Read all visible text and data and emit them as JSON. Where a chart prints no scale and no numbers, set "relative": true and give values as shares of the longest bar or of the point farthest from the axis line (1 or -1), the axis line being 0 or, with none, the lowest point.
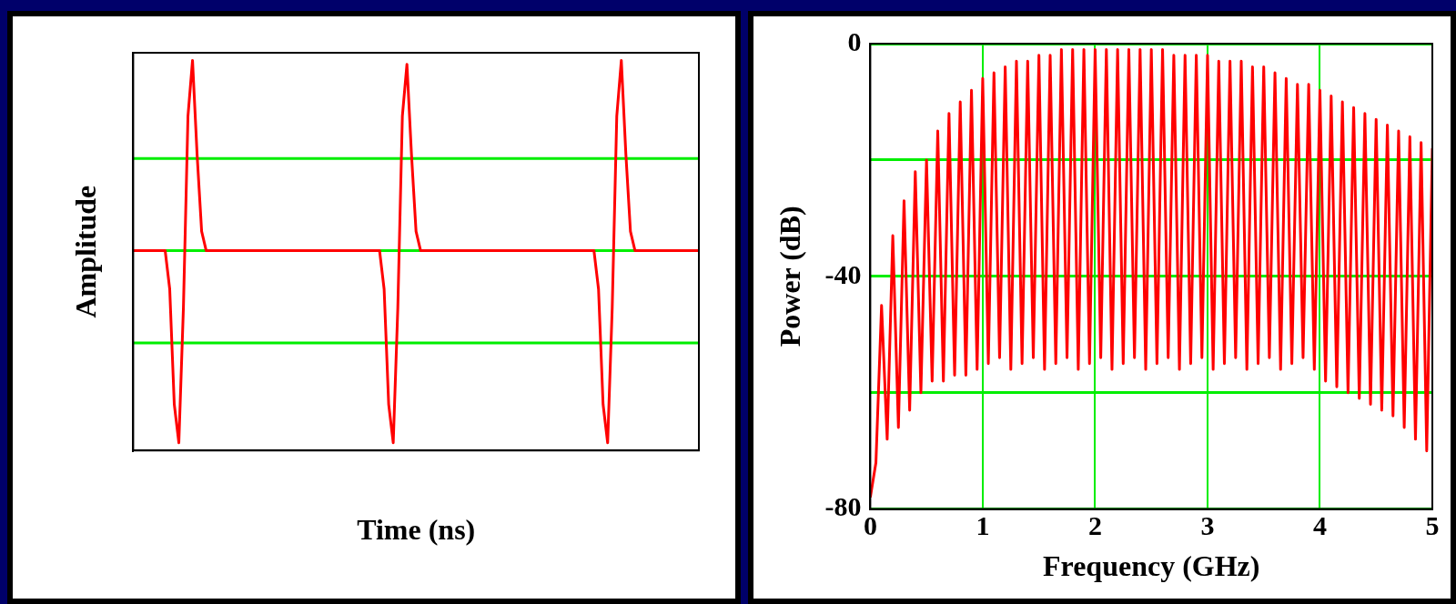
{
  "chart_data": [
    {
      "type": "line",
      "xlabel": "Time (ns)",
      "ylabel": "Amplitude",
      "relative": true,
      "marker": "none",
      "line_style": "solid",
      "ref_lines": [
        {
          "axis": "y",
          "value": 0.48,
          "color": "#00ee00"
        },
        {
          "axis": "y",
          "value": 0,
          "color": "#00ee00"
        },
        {
          "axis": "y",
          "value": -0.48,
          "color": "#00ee00"
        }
      ],
      "categories": [
        null,
        null,
        null,
        null,
        null,
        null,
        null,
        null,
        null,
        null,
        null,
        null,
        null,
        null,
        null,
        null,
        null,
        null,
        null,
        null,
        null,
        null,
        null,
        null,
        null,
        null,
        null,
        null,
        null,
        null,
        null,
        null,
        null,
        null,
        null,
        null,
        null,
        null,
        null,
        null,
        null,
        null,
        null,
        null,
        null,
        null,
        null,
        null,
        null,
        null,
        null,
        null,
        null,
        null,
        null,
        null,
        null,
        null,
        null,
        null,
        null,
        null,
        null,
        null,
        null,
        null,
        null,
        null,
        null,
        null,
        null,
        null,
        null,
        null,
        null,
        null,
        null,
        null,
        null,
        null,
        null,
        null,
        null,
        null,
        null,
        null,
        null,
        null,
        null,
        null,
        null,
        null,
        null,
        null,
        null,
        null,
        null,
        null,
        null,
        null,
        null,
        null,
        null,
        null,
        null,
        null,
        null,
        null,
        null,
        null,
        null,
        null,
        null,
        null,
        null,
        null,
        null,
        null,
        null,
        null,
        null,
        null,
        null,
        null,
        null
      ],
      "series": [
        {
          "color": "#ff0000",
          "values": [
            0,
            0,
            0,
            0,
            0,
            0,
            0,
            0,
            -0.2,
            -0.8,
            -1,
            -0.3,
            0.7,
            0.99,
            0.5,
            0.1,
            0,
            0,
            0,
            0,
            0,
            0,
            0,
            0,
            0,
            0,
            0,
            0,
            0,
            0,
            0,
            0,
            0,
            0,
            0,
            0,
            0,
            0,
            0,
            0,
            0,
            0,
            0,
            0,
            0,
            0,
            0,
            0,
            0,
            0,
            0,
            0,
            0,
            0,
            0,
            -0.2,
            -0.8,
            -1,
            -0.3,
            0.7,
            0.97,
            0.5,
            0.1,
            0,
            0,
            0,
            0,
            0,
            0,
            0,
            0,
            0,
            0,
            0,
            0,
            0,
            0,
            0,
            0,
            0,
            0,
            0,
            0,
            0,
            0,
            0,
            0,
            0,
            0,
            0,
            0,
            0,
            0,
            0,
            0,
            0,
            0,
            0,
            0,
            0,
            0,
            0,
            -0.2,
            -0.8,
            -1,
            -0.3,
            0.7,
            0.99,
            0.5,
            0.1,
            0,
            0,
            0,
            0,
            0,
            0,
            0,
            0,
            0,
            0,
            0,
            0,
            0,
            0,
            0
          ]
        }
      ]
    },
    {
      "type": "line",
      "xlabel": "Frequency (GHz)",
      "ylabel": "Power (dB)",
      "grid": true,
      "marker": "none",
      "line_style": "solid",
      "xlim": [
        0,
        5
      ],
      "xticks": [
        0,
        1,
        2,
        3,
        4,
        5
      ],
      "ylim": [
        -80,
        0
      ],
      "yticks": [
        -80,
        {
          "value": -60,
          "label": null
        },
        -40,
        {
          "value": -20,
          "label": null
        },
        0
      ],
      "series": [
        {
          "color": "#ff0000",
          "x": [
            0,
            0.05,
            0.1,
            0.15,
            0.2,
            0.25,
            0.3,
            0.35,
            0.4,
            0.45,
            0.5,
            0.55,
            0.6,
            0.65,
            0.7,
            0.75,
            0.8,
            0.85,
            0.9,
            0.95,
            1,
            1.05,
            1.1,
            1.15,
            1.2,
            1.25,
            1.3,
            1.35,
            1.4,
            1.45,
            1.5,
            1.55,
            1.6,
            1.65,
            1.7,
            1.75,
            1.8,
            1.85,
            1.9,
            1.95,
            2,
            2.05,
            2.1,
            2.15,
            2.2,
            2.25,
            2.3,
            2.35,
            2.4,
            2.45,
            2.5,
            2.55,
            2.6,
            2.65,
            2.7,
            2.75,
            2.8,
            2.85,
            2.9,
            2.95,
            3,
            3.05,
            3.1,
            3.15,
            3.2,
            3.25,
            3.3,
            3.35,
            3.4,
            3.45,
            3.5,
            3.55,
            3.6,
            3.65,
            3.7,
            3.75,
            3.8,
            3.85,
            3.9,
            3.95,
            4,
            4.05,
            4.1,
            4.15,
            4.2,
            4.25,
            4.3,
            4.35,
            4.4,
            4.45,
            4.5,
            4.55,
            4.6,
            4.65,
            4.7,
            4.75,
            4.8,
            4.85,
            4.9,
            4.95,
            5
          ],
          "values": [
            -78,
            -72,
            -45,
            -68,
            -33,
            -66,
            -27,
            -63,
            -22,
            -60,
            -20,
            -58,
            -15,
            -58,
            -12,
            -57,
            -10,
            -57,
            -8,
            -56,
            -6,
            -55,
            -5,
            -54,
            -4,
            -56,
            -3,
            -55,
            -3,
            -54,
            -2,
            -56,
            -2,
            -55,
            -1,
            -54,
            -1,
            -56,
            -1,
            -55,
            -1,
            -54,
            -1,
            -56,
            -1,
            -55,
            -1,
            -54,
            -1,
            -56,
            -1,
            -55,
            -1,
            -54,
            -2,
            -56,
            -2,
            -55,
            -2,
            -54,
            -2,
            -56,
            -3,
            -55,
            -3,
            -54,
            -3,
            -56,
            -4,
            -55,
            -4,
            -54,
            -5,
            -56,
            -6,
            -55,
            -7,
            -54,
            -7,
            -56,
            -8,
            -58,
            -9,
            -59,
            -10,
            -60,
            -11,
            -61,
            -12,
            -62,
            -13,
            -63,
            -14,
            -64,
            -15,
            -66,
            -16,
            -68,
            -17,
            -70,
            -18
          ]
        }
      ]
    }
  ]
}
